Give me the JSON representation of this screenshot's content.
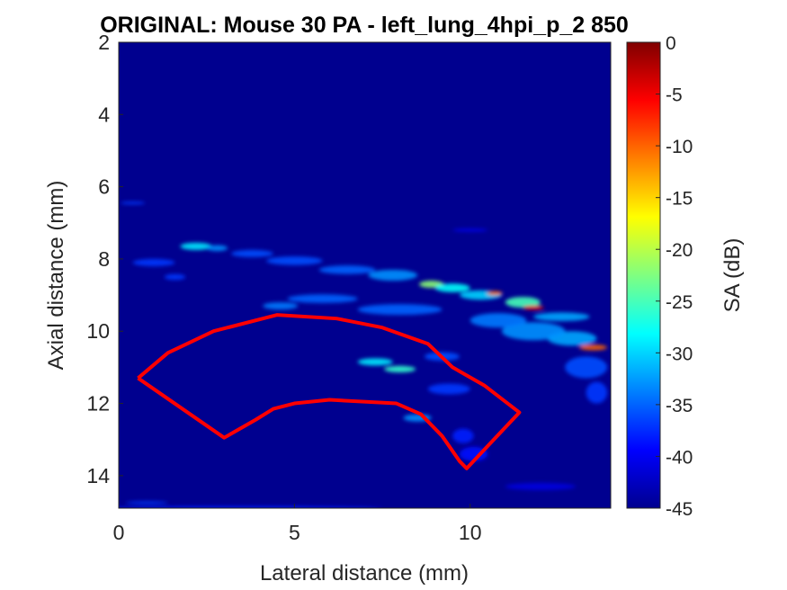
{
  "chart_data": {
    "type": "heatmap",
    "title": "ORIGINAL: Mouse 30 PA -   left_lung_4hpi_p_2 850",
    "xlabel": "Lateral distance (mm)",
    "ylabel": "Axial distance (mm)",
    "xlim": [
      0,
      14
    ],
    "ylim": [
      2,
      14.9
    ],
    "y_reversed": true,
    "xticks": [
      0,
      5,
      10
    ],
    "yticks": [
      2,
      4,
      6,
      8,
      10,
      12,
      14
    ],
    "colormap": "jet",
    "background_color": "#00008f",
    "colorbar": {
      "label": "SA (dB)",
      "limits": [
        -45,
        0
      ],
      "ticks": [
        0,
        -5,
        -10,
        -15,
        -20,
        -25,
        -30,
        -35,
        -40,
        -45
      ]
    },
    "roi_outline": {
      "color": "#ff0000",
      "points": [
        [
          0.55,
          11.3
        ],
        [
          1.4,
          10.6
        ],
        [
          2.7,
          10.0
        ],
        [
          4.5,
          9.55
        ],
        [
          6.2,
          9.65
        ],
        [
          7.5,
          9.9
        ],
        [
          8.8,
          10.35
        ],
        [
          9.5,
          11.0
        ],
        [
          10.4,
          11.5
        ],
        [
          11.4,
          12.25
        ],
        [
          9.9,
          13.8
        ],
        [
          9.7,
          13.6
        ],
        [
          9.2,
          12.9
        ],
        [
          8.6,
          12.3
        ],
        [
          7.9,
          12.0
        ],
        [
          6.0,
          11.9
        ],
        [
          5.0,
          12.0
        ],
        [
          4.4,
          12.15
        ],
        [
          3.9,
          12.45
        ],
        [
          3.0,
          12.95
        ],
        [
          0.55,
          11.3
        ]
      ]
    },
    "signal_features": [
      {
        "x": 2.2,
        "y": 7.65,
        "rx": 0.45,
        "ry": 0.1,
        "level": -29
      },
      {
        "x": 2.8,
        "y": 7.7,
        "rx": 0.3,
        "ry": 0.08,
        "level": -33
      },
      {
        "x": 3.8,
        "y": 7.85,
        "rx": 0.6,
        "ry": 0.1,
        "level": -36
      },
      {
        "x": 5.0,
        "y": 8.05,
        "rx": 0.8,
        "ry": 0.12,
        "level": -36
      },
      {
        "x": 6.5,
        "y": 8.3,
        "rx": 0.8,
        "ry": 0.12,
        "level": -35
      },
      {
        "x": 1.0,
        "y": 8.1,
        "rx": 0.6,
        "ry": 0.1,
        "level": -37
      },
      {
        "x": 1.6,
        "y": 8.5,
        "rx": 0.3,
        "ry": 0.08,
        "level": -37
      },
      {
        "x": 7.8,
        "y": 8.45,
        "rx": 0.7,
        "ry": 0.15,
        "level": -33
      },
      {
        "x": 8.9,
        "y": 8.7,
        "rx": 0.35,
        "ry": 0.1,
        "level": -22
      },
      {
        "x": 9.5,
        "y": 8.8,
        "rx": 0.5,
        "ry": 0.12,
        "level": -28
      },
      {
        "x": 10.3,
        "y": 9.0,
        "rx": 0.6,
        "ry": 0.13,
        "level": -30
      },
      {
        "x": 10.7,
        "y": 8.95,
        "rx": 0.22,
        "ry": 0.06,
        "level": -10
      },
      {
        "x": 11.5,
        "y": 9.2,
        "rx": 0.5,
        "ry": 0.15,
        "level": -25
      },
      {
        "x": 11.8,
        "y": 9.35,
        "rx": 0.3,
        "ry": 0.06,
        "level": -5
      },
      {
        "x": 12.6,
        "y": 9.6,
        "rx": 0.8,
        "ry": 0.12,
        "level": -32
      },
      {
        "x": 13.5,
        "y": 10.45,
        "rx": 0.4,
        "ry": 0.08,
        "level": -10
      },
      {
        "x": 12.9,
        "y": 10.2,
        "rx": 0.7,
        "ry": 0.2,
        "level": -32
      },
      {
        "x": 11.8,
        "y": 10.0,
        "rx": 0.9,
        "ry": 0.25,
        "level": -33
      },
      {
        "x": 10.8,
        "y": 9.7,
        "rx": 0.8,
        "ry": 0.2,
        "level": -34
      },
      {
        "x": 13.3,
        "y": 11.0,
        "rx": 0.6,
        "ry": 0.3,
        "level": -36
      },
      {
        "x": 13.6,
        "y": 11.7,
        "rx": 0.3,
        "ry": 0.3,
        "level": -37
      },
      {
        "x": 8.0,
        "y": 9.4,
        "rx": 1.2,
        "ry": 0.15,
        "level": -35
      },
      {
        "x": 5.8,
        "y": 9.1,
        "rx": 1.0,
        "ry": 0.12,
        "level": -35
      },
      {
        "x": 4.6,
        "y": 9.3,
        "rx": 0.5,
        "ry": 0.1,
        "level": -34
      },
      {
        "x": 7.3,
        "y": 10.85,
        "rx": 0.5,
        "ry": 0.1,
        "level": -29
      },
      {
        "x": 8.0,
        "y": 11.05,
        "rx": 0.45,
        "ry": 0.09,
        "level": -26
      },
      {
        "x": 9.2,
        "y": 10.7,
        "rx": 0.5,
        "ry": 0.12,
        "level": -36
      },
      {
        "x": 9.4,
        "y": 11.6,
        "rx": 0.6,
        "ry": 0.15,
        "level": -37
      },
      {
        "x": 8.5,
        "y": 12.4,
        "rx": 0.4,
        "ry": 0.1,
        "level": -33
      },
      {
        "x": 9.8,
        "y": 12.9,
        "rx": 0.3,
        "ry": 0.2,
        "level": -38
      },
      {
        "x": 10.1,
        "y": 13.4,
        "rx": 0.4,
        "ry": 0.2,
        "level": -39
      },
      {
        "x": 0.4,
        "y": 6.45,
        "rx": 0.35,
        "ry": 0.04,
        "level": -37
      },
      {
        "x": 10.0,
        "y": 7.2,
        "rx": 0.5,
        "ry": 0.04,
        "level": -40
      },
      {
        "x": 3.5,
        "y": 14.9,
        "rx": 4.0,
        "ry": 0.05,
        "level": -38
      },
      {
        "x": 0.8,
        "y": 14.75,
        "rx": 0.6,
        "ry": 0.04,
        "level": -37
      },
      {
        "x": 12.0,
        "y": 14.3,
        "rx": 1.0,
        "ry": 0.1,
        "level": -41
      }
    ]
  }
}
